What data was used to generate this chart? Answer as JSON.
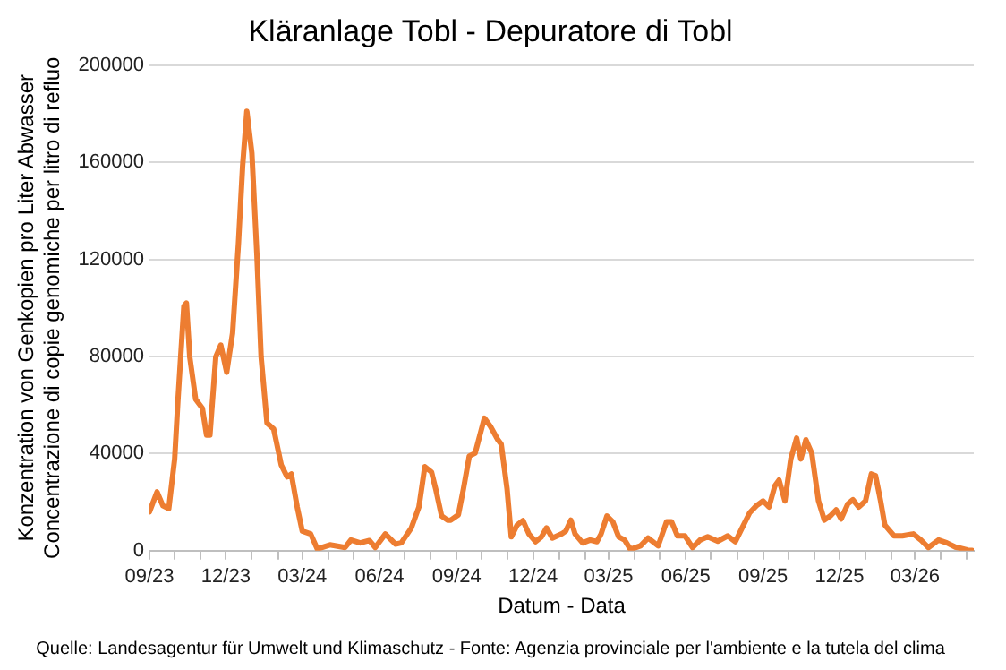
{
  "chart_data": {
    "type": "line",
    "title": "Kläranlage Tobl - Depuratore di Tobl",
    "xlabel": "Datum - Data",
    "ylabel": "Konzentration von Genkopien pro Liter Abwasser\nConcentrazione di copie genomiche per litro di refluo",
    "annotations": [
      "Quelle: Landesagentur für Umwelt und Klimaschutz - Fonte: Agenzia provinciale per l'ambiente e la tutela del clima"
    ],
    "grid": "y",
    "legend": false,
    "marker": "none",
    "line_style": "solid",
    "ylim": [
      0,
      200000
    ],
    "yticks": [
      0,
      40000,
      80000,
      120000,
      160000,
      200000
    ],
    "xlim": [
      "2023-09-01",
      "2026-05-10"
    ],
    "xticks": [
      {
        "value": "2023-09-01",
        "label": "09/23"
      },
      {
        "value": "2023-10-01",
        "label": null
      },
      {
        "value": "2023-11-01",
        "label": null
      },
      {
        "value": "2023-12-01",
        "label": "12/23"
      },
      {
        "value": "2024-01-01",
        "label": null
      },
      {
        "value": "2024-02-01",
        "label": null
      },
      {
        "value": "2024-03-01",
        "label": "03/24"
      },
      {
        "value": "2024-04-01",
        "label": null
      },
      {
        "value": "2024-05-01",
        "label": null
      },
      {
        "value": "2024-06-01",
        "label": "06/24"
      },
      {
        "value": "2024-07-01",
        "label": null
      },
      {
        "value": "2024-08-01",
        "label": null
      },
      {
        "value": "2024-09-01",
        "label": "09/24"
      },
      {
        "value": "2024-10-01",
        "label": null
      },
      {
        "value": "2024-11-01",
        "label": null
      },
      {
        "value": "2024-12-01",
        "label": "12/24"
      },
      {
        "value": "2025-01-01",
        "label": null
      },
      {
        "value": "2025-02-01",
        "label": null
      },
      {
        "value": "2025-03-01",
        "label": "03/25"
      },
      {
        "value": "2025-04-01",
        "label": null
      },
      {
        "value": "2025-05-01",
        "label": null
      },
      {
        "value": "2025-06-01",
        "label": "06/25"
      },
      {
        "value": "2025-07-01",
        "label": null
      },
      {
        "value": "2025-08-01",
        "label": null
      },
      {
        "value": "2025-09-01",
        "label": "09/25"
      },
      {
        "value": "2025-10-01",
        "label": null
      },
      {
        "value": "2025-11-01",
        "label": null
      },
      {
        "value": "2025-12-01",
        "label": "12/25"
      },
      {
        "value": "2026-01-01",
        "label": null
      },
      {
        "value": "2026-02-01",
        "label": null
      },
      {
        "value": "2026-03-01",
        "label": "03/26"
      },
      {
        "value": "2026-04-01",
        "label": null
      },
      {
        "value": "2026-05-01",
        "label": null
      }
    ],
    "x": [
      "2023-09-01",
      "2023-09-10",
      "2023-09-17",
      "2023-09-24",
      "2023-10-01",
      "2023-10-05",
      "2023-10-12",
      "2023-10-15",
      "2023-10-19",
      "2023-10-26",
      "2023-11-03",
      "2023-11-08",
      "2023-11-12",
      "2023-11-19",
      "2023-11-25",
      "2023-12-02",
      "2023-12-09",
      "2023-12-16",
      "2023-12-21",
      "2023-12-26",
      "2024-01-01",
      "2024-01-07",
      "2024-01-12",
      "2024-01-19",
      "2024-01-27",
      "2024-02-05",
      "2024-02-12",
      "2024-02-17",
      "2024-02-24",
      "2024-03-01",
      "2024-03-11",
      "2024-03-19",
      "2024-04-03",
      "2024-04-21",
      "2024-04-28",
      "2024-05-09",
      "2024-05-20",
      "2024-05-27",
      "2024-06-08",
      "2024-06-20",
      "2024-06-27",
      "2024-07-09",
      "2024-07-18",
      "2024-07-25",
      "2024-08-02",
      "2024-08-07",
      "2024-08-14",
      "2024-08-21",
      "2024-08-25",
      "2024-09-03",
      "2024-09-09",
      "2024-09-16",
      "2024-09-23",
      "2024-10-04",
      "2024-10-11",
      "2024-10-20",
      "2024-10-24",
      "2024-10-31",
      "2024-11-05",
      "2024-11-12",
      "2024-11-19",
      "2024-11-26",
      "2024-12-04",
      "2024-12-11",
      "2024-12-17",
      "2024-12-24",
      "2025-01-04",
      "2025-01-09",
      "2025-01-15",
      "2025-01-20",
      "2025-01-29",
      "2025-02-07",
      "2025-02-15",
      "2025-02-20",
      "2025-02-27",
      "2025-03-06",
      "2025-03-13",
      "2025-03-20",
      "2025-03-27",
      "2025-04-08",
      "2025-04-17",
      "2025-04-29",
      "2025-05-09",
      "2025-05-15",
      "2025-05-22",
      "2025-05-31",
      "2025-06-09",
      "2025-06-18",
      "2025-06-27",
      "2025-07-09",
      "2025-07-21",
      "2025-07-30",
      "2025-08-07",
      "2025-08-16",
      "2025-08-24",
      "2025-09-01",
      "2025-09-08",
      "2025-09-15",
      "2025-09-20",
      "2025-09-27",
      "2025-10-04",
      "2025-10-11",
      "2025-10-16",
      "2025-10-22",
      "2025-10-29",
      "2025-11-06",
      "2025-11-13",
      "2025-11-20",
      "2025-11-27",
      "2025-12-03",
      "2025-12-11",
      "2025-12-17",
      "2025-12-24",
      "2026-01-01",
      "2026-01-08",
      "2026-01-13",
      "2026-01-19",
      "2026-01-24",
      "2026-02-04",
      "2026-02-14",
      "2026-02-27",
      "2026-03-08",
      "2026-03-17",
      "2026-03-29",
      "2026-04-08",
      "2026-04-18",
      "2026-05-03",
      "2026-05-08"
    ],
    "series": [
      {
        "color": "#ed7d31",
        "values": [
          16000,
          24200,
          18500,
          17300,
          37800,
          62400,
          100700,
          102000,
          79800,
          62400,
          58700,
          47600,
          47600,
          79800,
          84700,
          73500,
          89600,
          126700,
          158700,
          181000,
          163700,
          121700,
          79800,
          52600,
          50100,
          35300,
          30400,
          31600,
          18000,
          8100,
          6900,
          700,
          2400,
          1300,
          4400,
          3200,
          4200,
          1300,
          6900,
          2700,
          3200,
          9400,
          18000,
          34600,
          32400,
          25400,
          14300,
          12600,
          12600,
          14800,
          25400,
          39000,
          40200,
          54600,
          51300,
          45700,
          43900,
          25400,
          5700,
          10600,
          12400,
          6900,
          3700,
          5700,
          9400,
          5200,
          6900,
          8100,
          12600,
          6900,
          3200,
          4400,
          3700,
          6900,
          14300,
          11900,
          5700,
          4400,
          500,
          2000,
          5200,
          2000,
          11900,
          11900,
          6100,
          6100,
          1300,
          4400,
          5700,
          3900,
          6100,
          3700,
          9400,
          15600,
          18500,
          20500,
          18000,
          26700,
          29100,
          20500,
          37800,
          46400,
          37800,
          45700,
          40200,
          20500,
          12600,
          14300,
          16800,
          13100,
          19300,
          21000,
          18000,
          20500,
          31600,
          30900,
          20500,
          10600,
          6100,
          6100,
          6900,
          4400,
          1300,
          4400,
          3200,
          1500,
          200,
          100
        ]
      }
    ]
  }
}
